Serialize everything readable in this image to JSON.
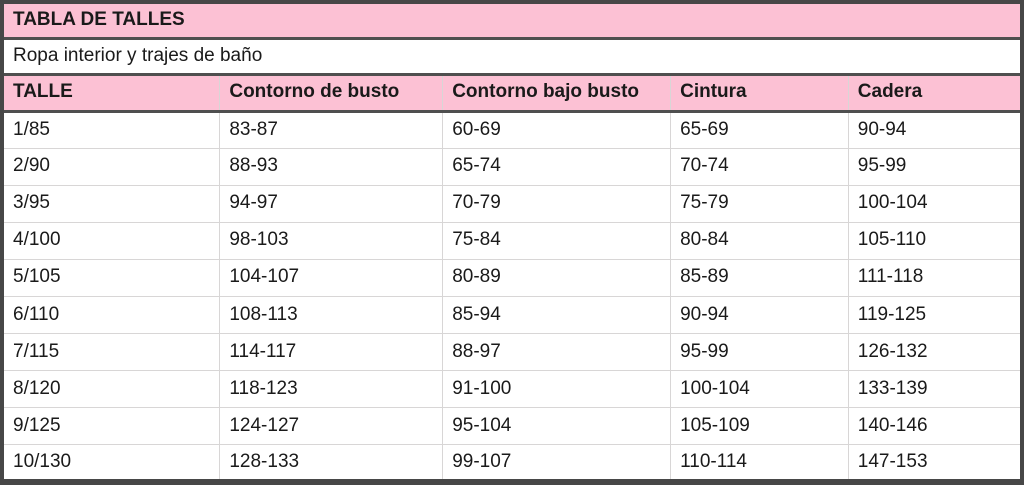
{
  "chart_data": {
    "type": "table",
    "title": "TABLA DE TALLES",
    "subtitle": "Ropa interior y trajes de baño",
    "columns": [
      "TALLE",
      "Contorno de busto",
      "Contorno bajo busto",
      "Cintura",
      "Cadera"
    ],
    "rows": [
      [
        "1/85",
        "83-87",
        "60-69",
        "65-69",
        "90-94"
      ],
      [
        "2/90",
        "88-93",
        "65-74",
        "70-74",
        "95-99"
      ],
      [
        "3/95",
        "94-97",
        "70-79",
        "75-79",
        "100-104"
      ],
      [
        "4/100",
        "98-103",
        "75-84",
        "80-84",
        "105-110"
      ],
      [
        "5/105",
        "104-107",
        "80-89",
        "85-89",
        "111-118"
      ],
      [
        "6/110",
        "108-113",
        "85-94",
        "90-94",
        "119-125"
      ],
      [
        "7/115",
        "114-117",
        "88-97",
        "95-99",
        "126-132"
      ],
      [
        "8/120",
        "118-123",
        "91-100",
        "100-104",
        "133-139"
      ],
      [
        "9/125",
        "124-127",
        "95-104",
        "105-109",
        "140-146"
      ],
      [
        "10/130",
        "128-133",
        "99-107",
        "110-114",
        "147-153"
      ]
    ],
    "colors": {
      "header_pink": "#fcc1d4",
      "outer_border_dark": "#474747",
      "grid_light": "#d8d6d6",
      "text": "#1a1a1a",
      "row_background": "#ffffff"
    }
  }
}
